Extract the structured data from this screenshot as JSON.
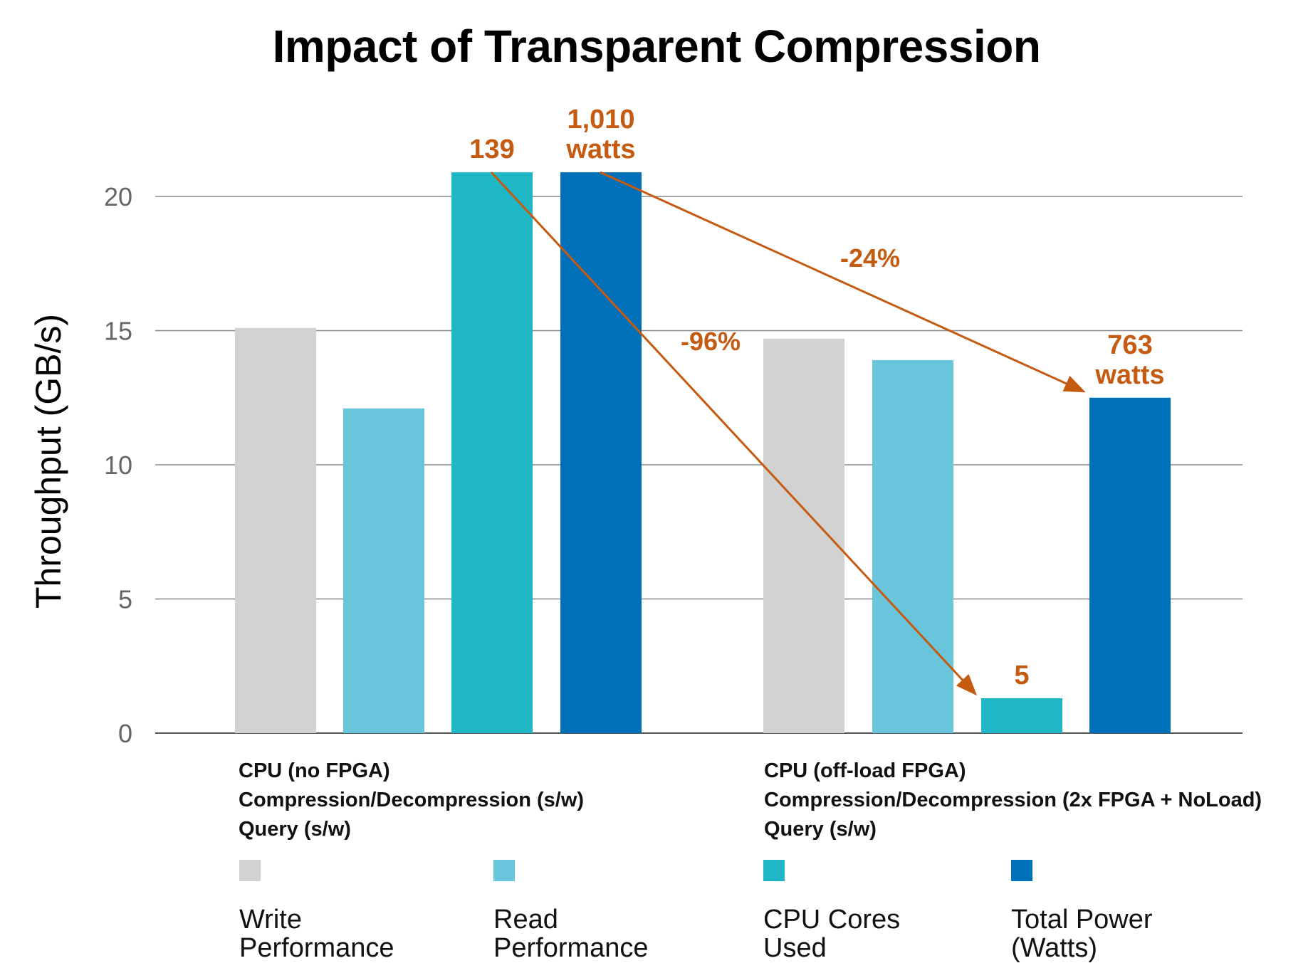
{
  "chart_data": {
    "type": "bar",
    "title": "Impact of Transparent Compression",
    "ylabel": "Throughput (GB/s)",
    "ylim": [
      0,
      21
    ],
    "yticks": [
      0,
      5,
      10,
      15,
      20
    ],
    "grid": true,
    "categories": [
      [
        "CPU (no FPGA)",
        "Compression/Decompression (s/w)",
        "Query (s/w)"
      ],
      [
        "CPU (off-load FPGA)",
        "Compression/Decompression (2x FPGA + NoLoad)",
        "Query (s/w)"
      ]
    ],
    "series": [
      {
        "name": "Write Performance",
        "color": "#d2d2d2",
        "values": [
          15.1,
          14.7
        ]
      },
      {
        "name": "Read Performance",
        "color": "#68c5db",
        "values": [
          12.1,
          13.9
        ]
      },
      {
        "name": "CPU Cores Used",
        "color": "#1fb6c6",
        "values": [
          20.9,
          1.3
        ]
      },
      {
        "name": "Total Power (Watts)",
        "color": "#0070b8",
        "values": [
          20.9,
          12.5
        ]
      }
    ],
    "annotations": [
      {
        "text": [
          "139"
        ],
        "group": 0,
        "series": 2
      },
      {
        "text": [
          "1,010",
          "watts"
        ],
        "group": 0,
        "series": 3
      },
      {
        "text": [
          "5"
        ],
        "group": 1,
        "series": 2
      },
      {
        "text": [
          "763",
          "watts"
        ],
        "group": 1,
        "series": 3
      }
    ],
    "arrows": [
      {
        "from": {
          "group": 0,
          "series": 2
        },
        "to": {
          "group": 1,
          "series": 2
        },
        "label": "-96%"
      },
      {
        "from": {
          "group": 0,
          "series": 3
        },
        "to": {
          "group": 1,
          "series": 3
        },
        "label": "-24%"
      }
    ],
    "annotation_color": "#c55a11",
    "legend": "bottom"
  }
}
